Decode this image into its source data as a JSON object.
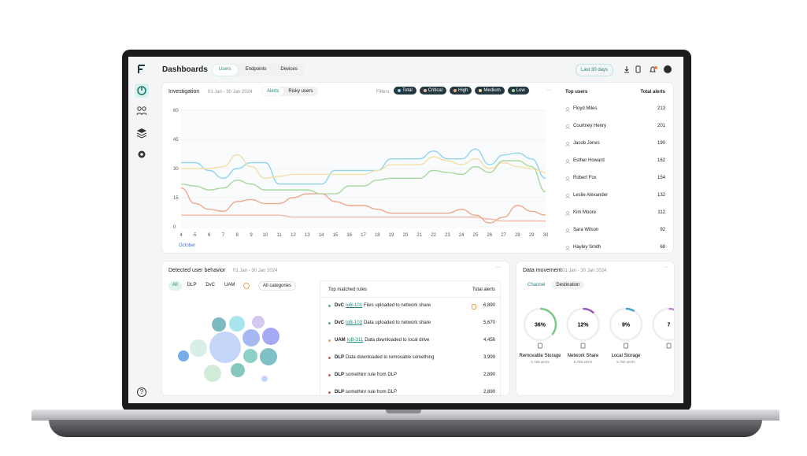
{
  "nav": {
    "help": "?"
  },
  "header": {
    "title": "Dashboards",
    "tabs": [
      "Users",
      "Endpoints",
      "Devices"
    ],
    "date_button": "Last 30 days"
  },
  "investigation": {
    "title": "Investigation",
    "date": "01 Jan - 30 Jan 2024",
    "toggle": [
      "Alerts",
      "Risky users"
    ],
    "filters_label": "Filters:",
    "chart": {
      "type": "line",
      "x": [
        4,
        5,
        6,
        7,
        8,
        9,
        10,
        11,
        12,
        13,
        14,
        15,
        16,
        17,
        18,
        19,
        20,
        21,
        22,
        23,
        24,
        25,
        26,
        27,
        28,
        29,
        30
      ],
      "xlabel": "October",
      "ylim": [
        0,
        60
      ],
      "yticks": [
        0,
        15,
        30,
        45,
        60
      ],
      "grid": true,
      "series": [
        {
          "name": "Total",
          "color": "#8fd4f0",
          "values": [
            33,
            33,
            29,
            25,
            30,
            33,
            33,
            22,
            22,
            22,
            22,
            29,
            29,
            29,
            29,
            35,
            35,
            35,
            39,
            35,
            35,
            40,
            32,
            37,
            38,
            35,
            25
          ]
        },
        {
          "name": "Critical",
          "color": "#f3b6a8",
          "values": [
            6,
            6,
            6,
            6,
            6,
            6,
            6,
            6,
            5,
            5,
            5,
            5,
            5,
            5,
            5,
            5,
            5,
            5,
            5,
            5,
            5,
            5,
            4,
            3,
            3,
            3,
            3
          ]
        },
        {
          "name": "High",
          "color": "#f0a88a",
          "values": [
            20,
            12,
            9,
            8,
            13,
            14,
            12,
            12,
            15,
            17,
            17,
            13,
            11,
            11,
            9,
            7,
            7,
            7,
            7,
            7,
            9,
            6,
            2,
            5,
            11,
            8,
            6
          ]
        },
        {
          "name": "Medium",
          "color": "#f4dfa6",
          "values": [
            30,
            30,
            30,
            31,
            37,
            31,
            25,
            26,
            27,
            27,
            27,
            27,
            27,
            27,
            29,
            32,
            32,
            32,
            36,
            34,
            32,
            35,
            30,
            33,
            31,
            30,
            28
          ]
        },
        {
          "name": "Low",
          "color": "#a9d89e",
          "values": [
            22,
            21,
            19,
            20,
            24,
            22,
            19,
            19,
            19,
            19,
            17,
            17,
            21,
            21,
            24,
            25,
            25,
            25,
            29,
            28,
            27,
            31,
            28,
            34,
            34,
            31,
            18
          ]
        }
      ]
    },
    "top_users": {
      "header": [
        "Top users",
        "Total alerts"
      ],
      "rows": [
        [
          "Floyd Miles",
          "213"
        ],
        [
          "Courtney Henry",
          "201"
        ],
        [
          "Jacob Jones",
          "190"
        ],
        [
          "Esther Howard",
          "162"
        ],
        [
          "Robert Fox",
          "154"
        ],
        [
          "Leslie Alexander",
          "132"
        ],
        [
          "Kim Moore",
          "112"
        ],
        [
          "Sara Wilson",
          "92"
        ],
        [
          "Hayley Smith",
          "68"
        ]
      ]
    }
  },
  "behavior": {
    "title": "Detected user behavior",
    "date": "01 Jan - 30 Jan 2024",
    "tabs": [
      "All",
      "DLP",
      "DvC",
      "UAM"
    ],
    "dropdown": "All categories",
    "table": {
      "header": [
        "Top matched rules",
        "Total alerts"
      ],
      "rows": [
        {
          "tag": "DvC",
          "id": "IoB-101",
          "text": "Files uploaded to network share",
          "value": "6,890",
          "color": "#3fb8a8"
        },
        {
          "tag": "DvC",
          "id": "IoB-103",
          "text": "Data uploaded to network share",
          "value": "5,670",
          "color": "#3fb8a8"
        },
        {
          "tag": "UAM",
          "id": "IoB-311",
          "text": "Data downloaded to local drive",
          "value": "4,456",
          "color": "#f0a050"
        },
        {
          "tag": "DLP",
          "text": "Data downloaded to removable something",
          "value": "3,999",
          "color": "#e05a5a"
        },
        {
          "tag": "DLP",
          "text": "somethinr rule from DLP",
          "value": "2,890",
          "color": "#e05a5a"
        },
        {
          "tag": "DLP",
          "text": "somethinr rule from DLP",
          "value": "2,890",
          "color": "#e05a5a"
        }
      ]
    }
  },
  "data_movement": {
    "title": "Data movement",
    "date": "01 Jan - 30 Jan 2024",
    "tabs": [
      "Channel",
      "Destination"
    ],
    "cards": [
      {
        "value": 36,
        "value_label": "36%",
        "name": "Removable Storage",
        "sub": "5,789 alerts",
        "color": "#7dc98a"
      },
      {
        "value": 12,
        "value_label": "12%",
        "name": "Network Share",
        "sub": "5,789 alerts",
        "color": "#9b59b6"
      },
      {
        "value": 9,
        "value_label": "9%",
        "name": "Local Storage",
        "sub": "5,789 alerts",
        "color": "#3aa6c9"
      },
      {
        "value": 7,
        "value_label": "7",
        "color": "#c084d8"
      }
    ]
  }
}
